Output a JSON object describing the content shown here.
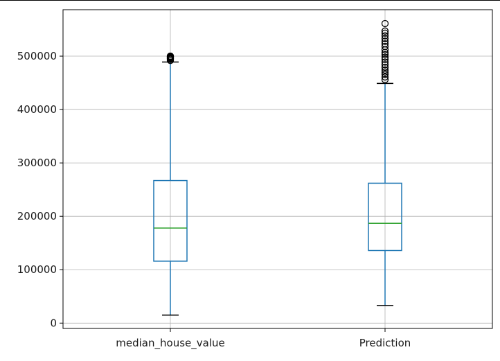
{
  "chart_data": {
    "type": "box",
    "title": "",
    "xlabel": "",
    "ylabel": "",
    "ylim": [
      -10000,
      587000
    ],
    "yticks": [
      0,
      100000,
      200000,
      300000,
      400000,
      500000
    ],
    "ytick_labels": [
      "0",
      "100000",
      "200000",
      "300000",
      "400000",
      "500000"
    ],
    "grid": true,
    "categories": [
      "median_house_value",
      "Prediction"
    ],
    "boxes": [
      {
        "name": "median_house_value",
        "whisker_low": 15000,
        "q1": 116000,
        "median": 178000,
        "q3": 267000,
        "whisker_high": 489000,
        "outliers": [
          492000,
          494000,
          495000,
          496000,
          497000,
          498000,
          499000,
          500000,
          500001
        ]
      },
      {
        "name": "Prediction",
        "whisker_low": 33000,
        "q1": 136000,
        "median": 187000,
        "q3": 262000,
        "whisker_high": 449000,
        "outliers": [
          456000,
          461000,
          466000,
          470000,
          474000,
          479000,
          484000,
          489000,
          494000,
          498000,
          503000,
          507000,
          512000,
          518000,
          523000,
          528000,
          533000,
          538000,
          543000,
          547000,
          561000
        ]
      }
    ],
    "colors": {
      "box": "#1f77b4",
      "median": "#2ca02c",
      "whisker_cap": "#000000",
      "outlier": "#000000",
      "grid": "#b0b0b0",
      "axes": "#000000"
    }
  }
}
